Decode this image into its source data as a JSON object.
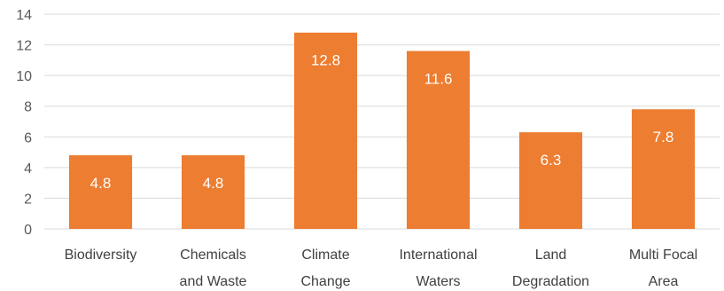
{
  "chart_data": {
    "type": "bar",
    "categories": [
      [
        "Biodiversity"
      ],
      [
        "Chemicals",
        "and Waste"
      ],
      [
        "Climate",
        "Change"
      ],
      [
        "International",
        "Waters"
      ],
      [
        "Land",
        "Degradation"
      ],
      [
        "Multi Focal",
        "Area"
      ]
    ],
    "values": [
      4.8,
      4.8,
      12.8,
      11.6,
      6.3,
      7.8
    ],
    "data_labels": [
      "4.8",
      "4.8",
      "12.8",
      "11.6",
      "6.3",
      "7.8"
    ],
    "yticks": [
      0,
      2,
      4,
      6,
      8,
      10,
      12,
      14
    ],
    "ylim": [
      0,
      14
    ],
    "grid": true,
    "legend": "none",
    "bar_color": "#ed7d31",
    "title": "",
    "xlabel": "",
    "ylabel": ""
  }
}
